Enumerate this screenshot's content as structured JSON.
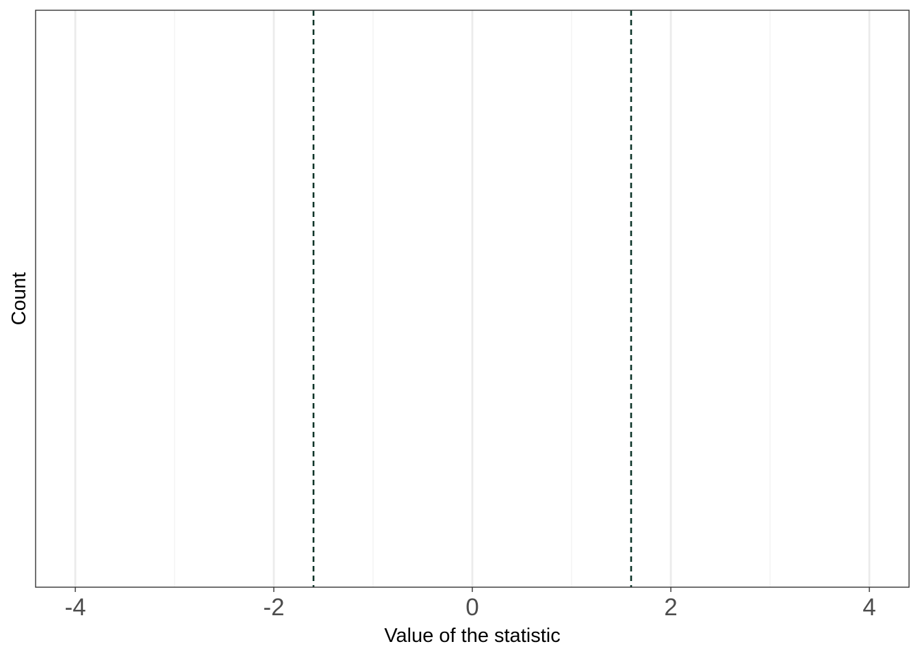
{
  "chart_data": {
    "type": "histogram",
    "title": "",
    "xlabel": "Value of the statistic",
    "ylabel": "Count",
    "xlim": [
      -4.4,
      4.4
    ],
    "x_ticks": [
      -4,
      -2,
      0,
      2,
      4
    ],
    "x_tick_labels": [
      "-4",
      "-2",
      "0",
      "2",
      "4"
    ],
    "x_minor_grid": [
      -3,
      -1,
      1,
      3
    ],
    "grid": true,
    "series": [],
    "reference_lines": [
      {
        "x": -1.6,
        "style": "dashed",
        "color": "#0b3327"
      },
      {
        "x": 1.6,
        "style": "dashed",
        "color": "#0b3327"
      }
    ],
    "colors": {
      "panel_border": "#333333",
      "grid_major": "#ebebeb",
      "grid_minor": "#f3f3f3",
      "tick_label": "#4d4d4d"
    }
  }
}
